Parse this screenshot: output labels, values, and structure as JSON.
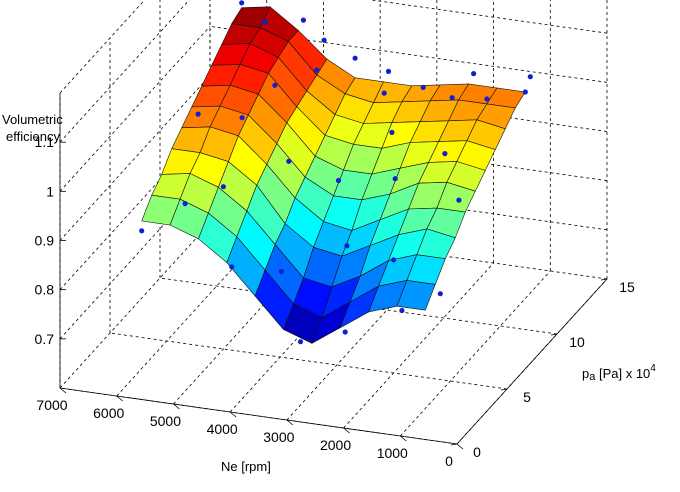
{
  "chart_data": {
    "type": "surface3d",
    "zlabel_line1": "Volumetric",
    "zlabel_line2": "efficiency",
    "xlabel": "Ne [rpm]",
    "ylabel_main": "p",
    "ylabel_sub": "a",
    "ylabel_rest": " [Pa] x 10",
    "ylabel_exp": "4",
    "x_ticks": [
      "7000",
      "6000",
      "5000",
      "4000",
      "3000",
      "2000",
      "1000",
      "0"
    ],
    "y_ticks": [
      "0",
      "5",
      "10",
      "15"
    ],
    "z_ticks": [
      "0.7",
      "0.8",
      "0.9",
      "1",
      "1.1"
    ],
    "xlim": [
      0,
      7000
    ],
    "ylim": [
      0,
      15
    ],
    "zlim": [
      0.6,
      1.2
    ],
    "grid": true,
    "colormap": "jet",
    "marker_color": "#1020d0",
    "surface": {
      "ne": [
        6000,
        5500,
        5000,
        4500,
        4000,
        3500,
        3000,
        2500,
        2000,
        1500,
        1000
      ],
      "pa": [
        2.5,
        3.5,
        4.5,
        5.5,
        6.5,
        7.5,
        8.5,
        9.5,
        10.5,
        11.5,
        12.5
      ],
      "z": [
        [
          0.9,
          0.93,
          0.95,
          0.98,
          1.0,
          1.02,
          1.04,
          1.06,
          1.08,
          1.1,
          1.11
        ],
        [
          0.9,
          0.93,
          0.96,
          0.98,
          1.01,
          1.03,
          1.05,
          1.07,
          1.09,
          1.1,
          1.12
        ],
        [
          0.88,
          0.91,
          0.94,
          0.97,
          1.0,
          1.02,
          1.04,
          1.06,
          1.07,
          1.08,
          1.08
        ],
        [
          0.84,
          0.87,
          0.9,
          0.93,
          0.95,
          0.97,
          0.99,
          1.0,
          1.01,
          1.02,
          1.03
        ],
        [
          0.78,
          0.81,
          0.84,
          0.86,
          0.89,
          0.91,
          0.93,
          0.95,
          0.97,
          0.99,
          1.0
        ],
        [
          0.72,
          0.75,
          0.78,
          0.82,
          0.85,
          0.88,
          0.91,
          0.94,
          0.96,
          0.98,
          1.0
        ],
        [
          0.7,
          0.73,
          0.77,
          0.81,
          0.84,
          0.88,
          0.91,
          0.94,
          0.97,
          0.99,
          1.0
        ],
        [
          0.74,
          0.77,
          0.8,
          0.84,
          0.87,
          0.9,
          0.93,
          0.96,
          0.98,
          1.0,
          1.01
        ],
        [
          0.78,
          0.81,
          0.84,
          0.87,
          0.9,
          0.93,
          0.95,
          0.97,
          0.99,
          1.01,
          1.02
        ],
        [
          0.8,
          0.83,
          0.86,
          0.89,
          0.91,
          0.94,
          0.96,
          0.98,
          1.0,
          1.01,
          1.02
        ],
        [
          0.8,
          0.83,
          0.86,
          0.88,
          0.91,
          0.93,
          0.95,
          0.97,
          0.99,
          1.01,
          1.02
        ]
      ]
    },
    "points": [
      [
        6000,
        2.5,
        0.88
      ],
      [
        6000,
        12.5,
        1.12
      ],
      [
        6000,
        13.0,
        1.13
      ],
      [
        5800,
        7.0,
        1.02
      ],
      [
        5500,
        4.0,
        0.91
      ],
      [
        5500,
        12.0,
        1.1
      ],
      [
        5000,
        5.0,
        0.93
      ],
      [
        5000,
        13.0,
        1.09
      ],
      [
        4800,
        9.0,
        1.05
      ],
      [
        4500,
        3.0,
        0.82
      ],
      [
        4500,
        11.5,
        1.03
      ],
      [
        4200,
        7.0,
        0.95
      ],
      [
        4000,
        12.5,
        1.04
      ],
      [
        3800,
        4.0,
        0.8
      ],
      [
        3500,
        8.0,
        0.9
      ],
      [
        3500,
        13.0,
        1.01
      ],
      [
        3200,
        2.5,
        0.7
      ],
      [
        3000,
        6.0,
        0.82
      ],
      [
        3000,
        10.5,
        0.95
      ],
      [
        2800,
        12.5,
        1.0
      ],
      [
        2500,
        3.0,
        0.72
      ],
      [
        2500,
        8.0,
        0.92
      ],
      [
        2200,
        12.0,
        1.0
      ],
      [
        2000,
        5.0,
        0.83
      ],
      [
        2000,
        13.0,
        1.03
      ],
      [
        1800,
        9.0,
        0.96
      ],
      [
        1500,
        3.0,
        0.78
      ],
      [
        1500,
        11.5,
        1.02
      ],
      [
        1200,
        7.0,
        0.92
      ],
      [
        1000,
        4.0,
        0.8
      ],
      [
        1000,
        13.0,
        1.04
      ],
      [
        1000,
        12.5,
        1.02
      ],
      [
        3400,
        12.0,
        0.99
      ],
      [
        4600,
        12.8,
        1.06
      ],
      [
        5200,
        8.0,
        1.0
      ]
    ]
  }
}
